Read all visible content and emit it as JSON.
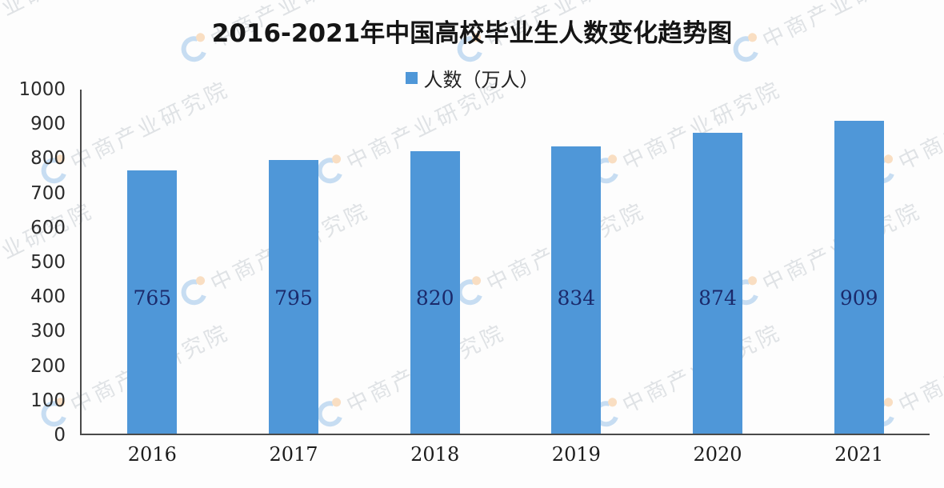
{
  "title": "2016-2021年中国高校毕业生人数变化趋势图",
  "legend": {
    "label": "人数（万人）"
  },
  "watermark": {
    "text": "中商产业研究院"
  },
  "colors": {
    "bar": "#4f97d8",
    "bar_label": "#1b2a6b",
    "axis": "#4a4a4a",
    "watermark_text": "#8b98a3",
    "watermark_logo_blue": "#2f86d6",
    "watermark_logo_orange": "#f08a1e"
  },
  "chart_data": {
    "type": "bar",
    "title": "2016-2021年中国高校毕业生人数变化趋势图",
    "categories": [
      "2016",
      "2017",
      "2018",
      "2019",
      "2020",
      "2021"
    ],
    "values": [
      765,
      795,
      820,
      834,
      874,
      909
    ],
    "series_name": "人数（万人）",
    "xlabel": "",
    "ylabel": "人数（万人）",
    "ylim": [
      0,
      1000
    ],
    "yticks": [
      0,
      100,
      200,
      300,
      400,
      500,
      600,
      700,
      800,
      900,
      1000
    ],
    "grid": false,
    "legend_position": "top",
    "data_labels": true
  }
}
